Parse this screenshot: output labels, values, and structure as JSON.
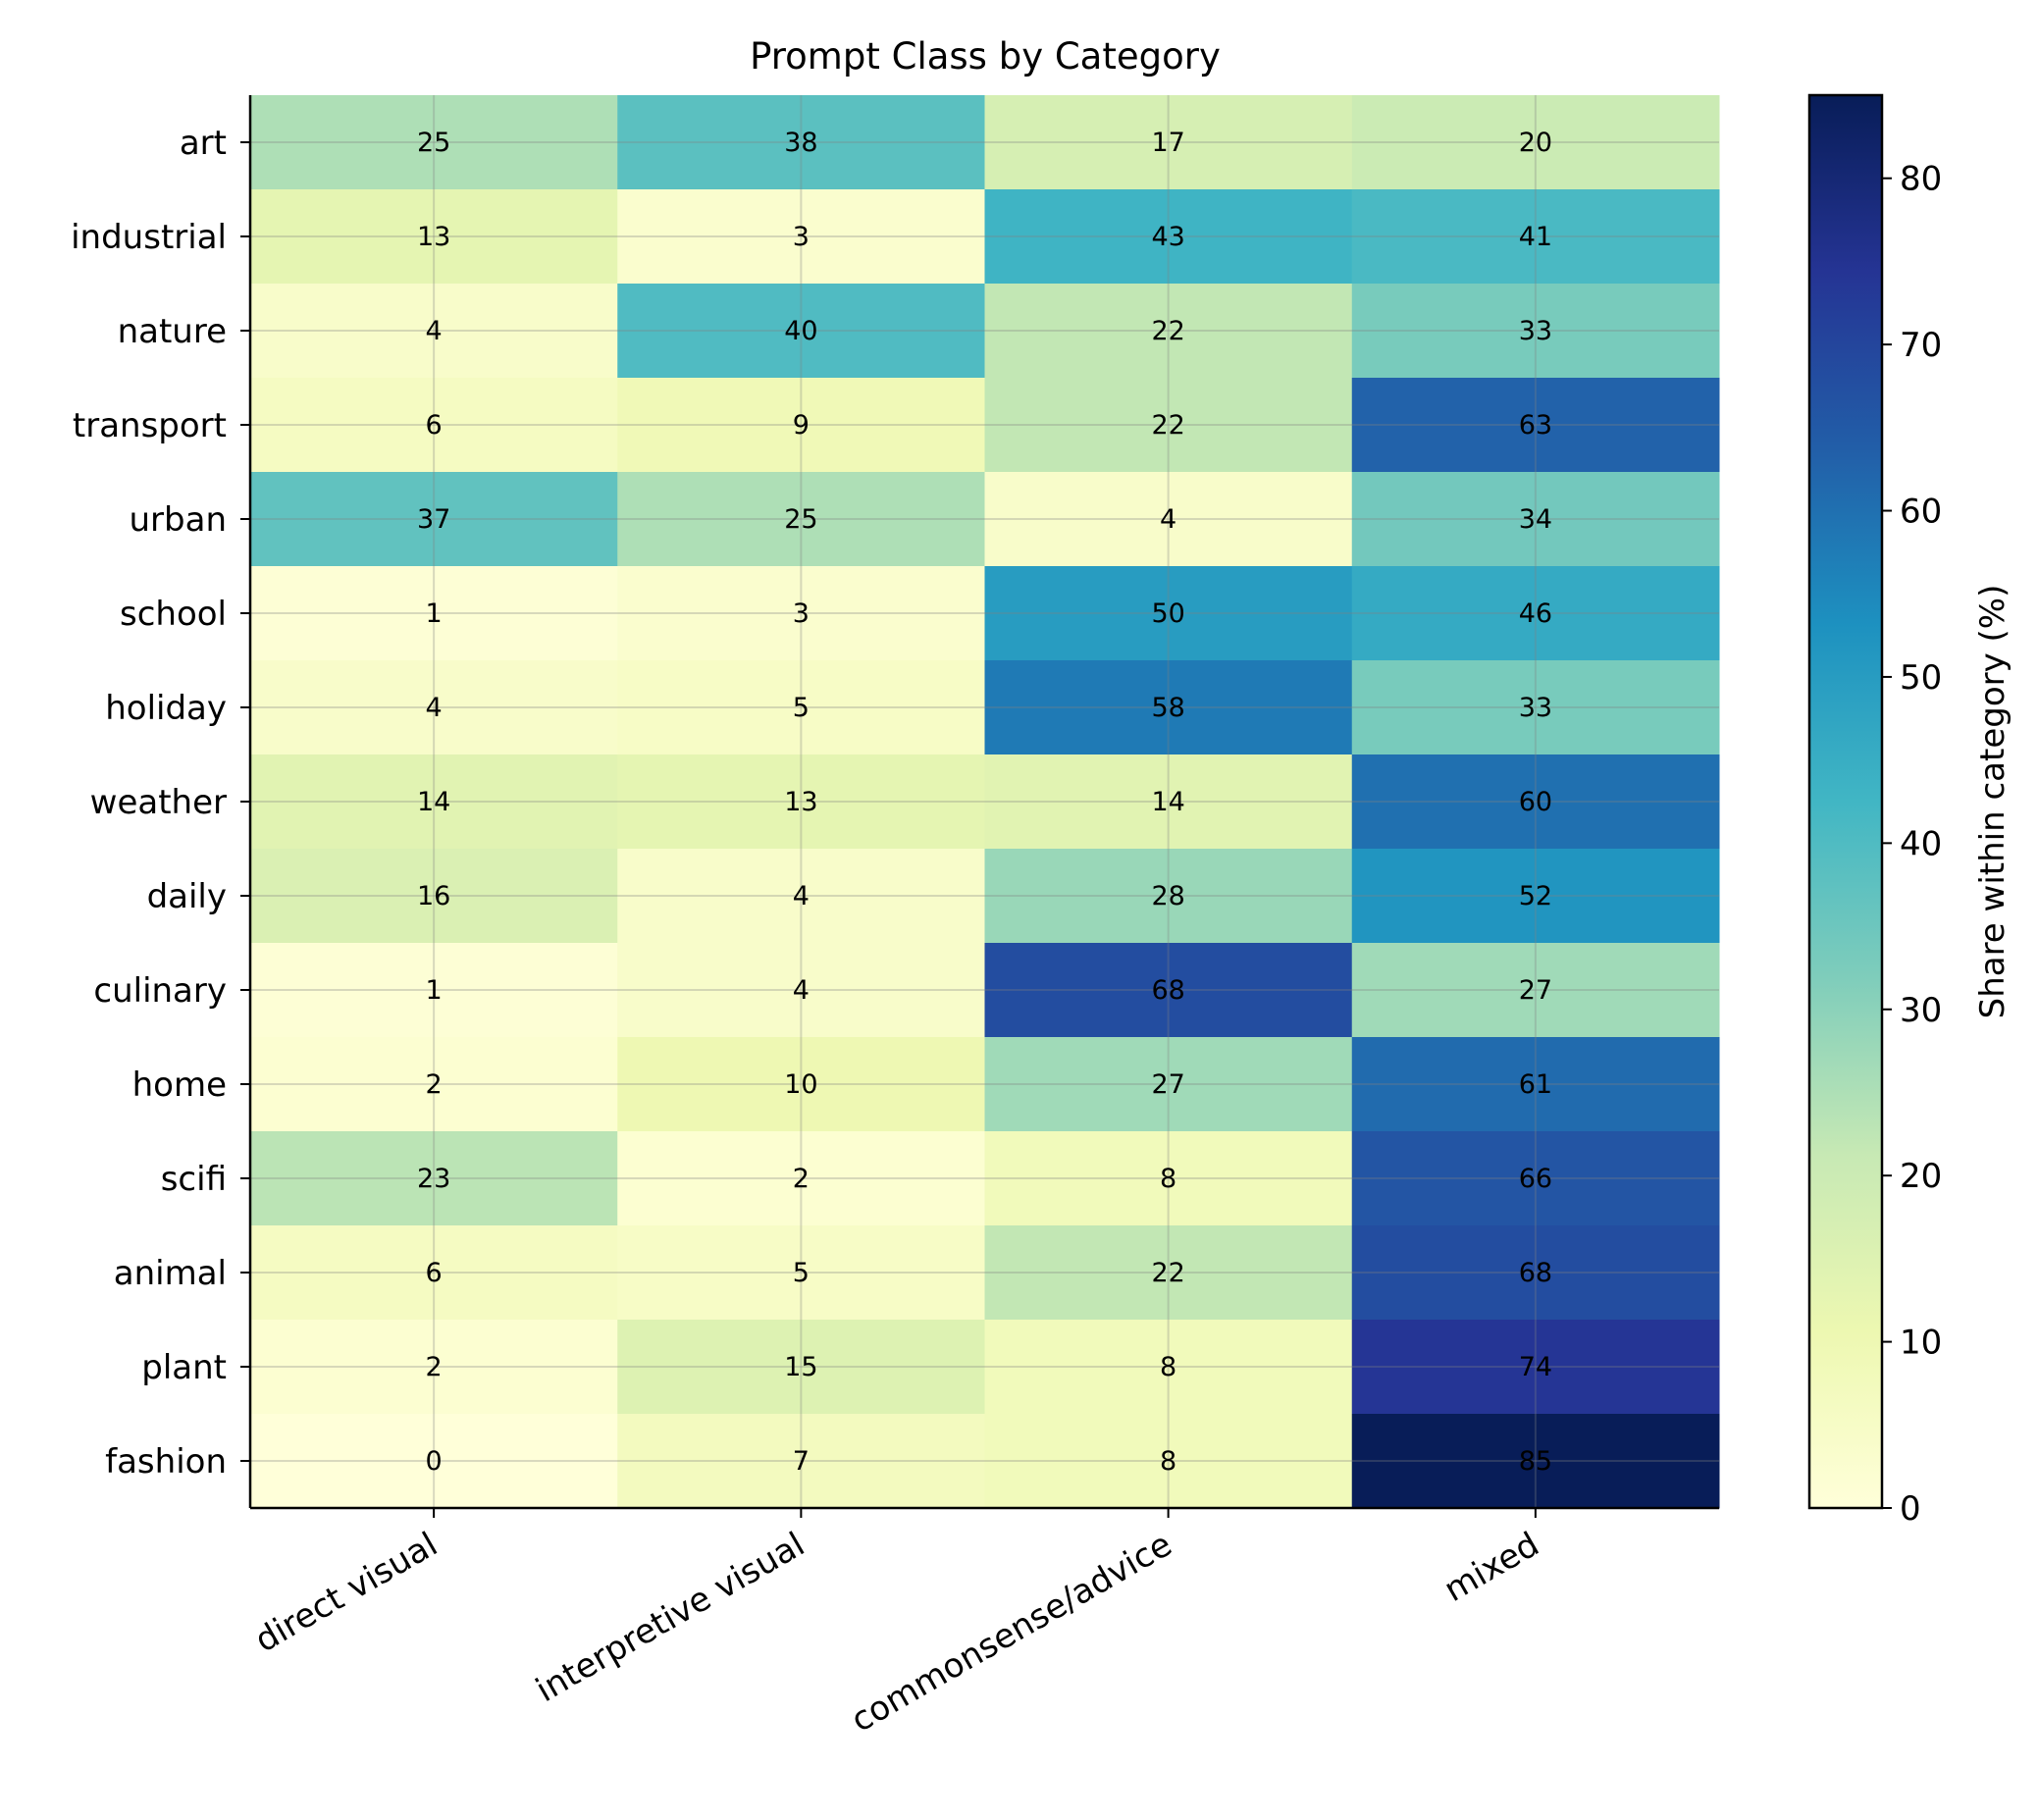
{
  "chart_data": {
    "type": "heatmap",
    "title": "Prompt Class by Category",
    "xlabel": "",
    "ylabel": "",
    "columns": [
      "direct visual",
      "interpretive visual",
      "commonsense/advice",
      "mixed"
    ],
    "rows": [
      "art",
      "industrial",
      "nature",
      "transport",
      "urban",
      "school",
      "holiday",
      "weather",
      "daily",
      "culinary",
      "home",
      "scifi",
      "animal",
      "plant",
      "fashion"
    ],
    "values": [
      [
        25,
        38,
        17,
        20
      ],
      [
        13,
        3,
        43,
        41
      ],
      [
        4,
        40,
        22,
        33
      ],
      [
        6,
        9,
        22,
        63
      ],
      [
        37,
        25,
        4,
        34
      ],
      [
        1,
        3,
        50,
        46
      ],
      [
        4,
        5,
        58,
        33
      ],
      [
        14,
        13,
        14,
        60
      ],
      [
        16,
        4,
        28,
        52
      ],
      [
        1,
        4,
        68,
        27
      ],
      [
        2,
        10,
        27,
        61
      ],
      [
        23,
        2,
        8,
        66
      ],
      [
        6,
        5,
        22,
        68
      ],
      [
        2,
        15,
        8,
        74
      ],
      [
        0,
        7,
        8,
        85
      ]
    ],
    "colorbar": {
      "label": "Share within category (%)",
      "range": [
        0,
        85
      ],
      "ticks": [
        0,
        10,
        20,
        30,
        40,
        50,
        60,
        70,
        80
      ],
      "colormap": "YlGnBu"
    },
    "grid": true
  }
}
